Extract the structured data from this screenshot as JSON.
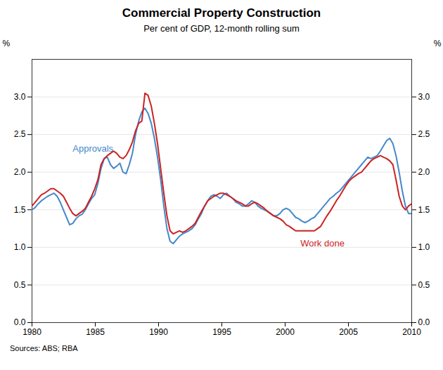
{
  "chart_data": {
    "type": "line",
    "title": "Commercial Property Construction",
    "subtitle": "Per cent of GDP, 12-month rolling sum",
    "source": "Sources: ABS; RBA",
    "ylabel": "%",
    "y2label": "%",
    "xlim": [
      1980,
      2010
    ],
    "ylim": [
      0.0,
      3.5
    ],
    "xticks": [
      1980,
      1985,
      1990,
      1995,
      2000,
      2005,
      2010
    ],
    "yticks": [
      {
        "value": 0,
        "label": "0.0"
      },
      0.5,
      {
        "value": 1,
        "label": "1.0"
      },
      1.5,
      {
        "value": 2,
        "label": "2.0"
      },
      2.5,
      {
        "value": 3,
        "label": "3.0"
      }
    ],
    "grid": true,
    "x": [
      1980,
      1980.2479,
      1980.4959,
      1980.7438,
      1980.9917,
      1981.2397,
      1981.4876,
      1981.7355,
      1981.9835,
      1982.2314,
      1982.4793,
      1982.7273,
      1982.9752,
      1983.2231,
      1983.4711,
      1983.719,
      1983.9669,
      1984.2149,
      1984.4628,
      1984.7107,
      1984.9587,
      1985.2066,
      1985.4545,
      1985.7025,
      1985.9504,
      1986.1983,
      1986.4463,
      1986.6942,
      1986.9421,
      1987.1901,
      1987.438,
      1987.686,
      1987.9339,
      1988.1818,
      1988.4298,
      1988.6777,
      1988.9256,
      1989.1736,
      1989.4215,
      1989.6694,
      1989.9174,
      1990.1653,
      1990.4132,
      1990.6612,
      1990.9091,
      1991.157,
      1991.405,
      1991.6529,
      1991.9008,
      1992.1488,
      1992.3967,
      1992.6446,
      1992.8926,
      1993.1405,
      1993.3884,
      1993.6364,
      1993.8843,
      1994.1322,
      1994.3802,
      1994.6281,
      1994.876,
      1995.124,
      1995.3719,
      1995.6198,
      1995.8678,
      1996.1157,
      1996.3636,
      1996.6116,
      1996.8595,
      1997.1074,
      1997.3554,
      1997.6033,
      1997.8512,
      1998.0992,
      1998.3471,
      1998.595,
      1998.843,
      1999.0909,
      1999.3388,
      1999.5868,
      1999.8347,
      2000.0826,
      2000.3306,
      2000.5785,
      2000.8264,
      2001.0744,
      2001.3223,
      2001.5702,
      2001.8182,
      2002.0661,
      2002.314,
      2002.562,
      2002.8099,
      2003.0579,
      2003.3058,
      2003.5537,
      2003.8017,
      2004.0496,
      2004.2975,
      2004.5455,
      2004.7934,
      2005.0413,
      2005.2893,
      2005.5372,
      2005.7851,
      2006.0331,
      2006.281,
      2006.5289,
      2006.7769,
      2007.0248,
      2007.2727,
      2007.5207,
      2007.7686,
      2008.0165,
      2008.2645,
      2008.5124,
      2008.7603,
      2009.0083,
      2009.2562,
      2009.5041,
      2009.7521,
      2010
    ],
    "series": [
      {
        "name": "Approvals",
        "color": "#4488cc",
        "values": [
          1.5,
          1.53,
          1.58,
          1.62,
          1.65,
          1.68,
          1.7,
          1.72,
          1.68,
          1.6,
          1.5,
          1.4,
          1.3,
          1.32,
          1.38,
          1.42,
          1.44,
          1.5,
          1.58,
          1.65,
          1.7,
          1.85,
          2.05,
          2.18,
          2.2,
          2.1,
          2.05,
          2.08,
          2.12,
          2.0,
          1.98,
          2.1,
          2.25,
          2.5,
          2.68,
          2.8,
          2.85,
          2.78,
          2.65,
          2.45,
          2.2,
          1.9,
          1.55,
          1.25,
          1.08,
          1.05,
          1.1,
          1.15,
          1.18,
          1.2,
          1.22,
          1.25,
          1.3,
          1.38,
          1.45,
          1.55,
          1.62,
          1.68,
          1.7,
          1.68,
          1.65,
          1.7,
          1.72,
          1.68,
          1.65,
          1.6,
          1.58,
          1.55,
          1.55,
          1.58,
          1.62,
          1.6,
          1.55,
          1.52,
          1.5,
          1.48,
          1.45,
          1.42,
          1.42,
          1.45,
          1.5,
          1.52,
          1.5,
          1.45,
          1.4,
          1.38,
          1.35,
          1.33,
          1.35,
          1.38,
          1.4,
          1.45,
          1.5,
          1.55,
          1.6,
          1.65,
          1.68,
          1.72,
          1.75,
          1.8,
          1.85,
          1.9,
          1.95,
          2.0,
          2.05,
          2.1,
          2.15,
          2.2,
          2.18,
          2.2,
          2.22,
          2.28,
          2.35,
          2.42,
          2.45,
          2.38,
          2.22,
          2.0,
          1.75,
          1.55,
          1.45,
          1.45
        ]
      },
      {
        "name": "Work done",
        "color": "#cc2222",
        "values": [
          1.55,
          1.6,
          1.65,
          1.7,
          1.72,
          1.75,
          1.78,
          1.78,
          1.75,
          1.72,
          1.68,
          1.6,
          1.52,
          1.45,
          1.42,
          1.45,
          1.48,
          1.52,
          1.6,
          1.68,
          1.78,
          1.9,
          2.1,
          2.18,
          2.22,
          2.25,
          2.28,
          2.25,
          2.2,
          2.18,
          2.22,
          2.3,
          2.4,
          2.55,
          2.65,
          2.68,
          3.05,
          3.02,
          2.88,
          2.65,
          2.38,
          2.05,
          1.72,
          1.42,
          1.22,
          1.18,
          1.2,
          1.22,
          1.2,
          1.22,
          1.25,
          1.28,
          1.32,
          1.4,
          1.48,
          1.55,
          1.62,
          1.65,
          1.68,
          1.7,
          1.72,
          1.72,
          1.7,
          1.68,
          1.65,
          1.62,
          1.6,
          1.58,
          1.55,
          1.55,
          1.58,
          1.6,
          1.58,
          1.55,
          1.52,
          1.48,
          1.45,
          1.42,
          1.4,
          1.38,
          1.35,
          1.3,
          1.28,
          1.25,
          1.22,
          1.22,
          1.22,
          1.22,
          1.22,
          1.22,
          1.22,
          1.25,
          1.28,
          1.35,
          1.42,
          1.48,
          1.55,
          1.62,
          1.68,
          1.75,
          1.82,
          1.88,
          1.92,
          1.95,
          1.98,
          2.0,
          2.05,
          2.1,
          2.15,
          2.18,
          2.2,
          2.22,
          2.2,
          2.18,
          2.15,
          2.1,
          1.9,
          1.68,
          1.55,
          1.5,
          1.55,
          1.58
        ]
      }
    ]
  }
}
